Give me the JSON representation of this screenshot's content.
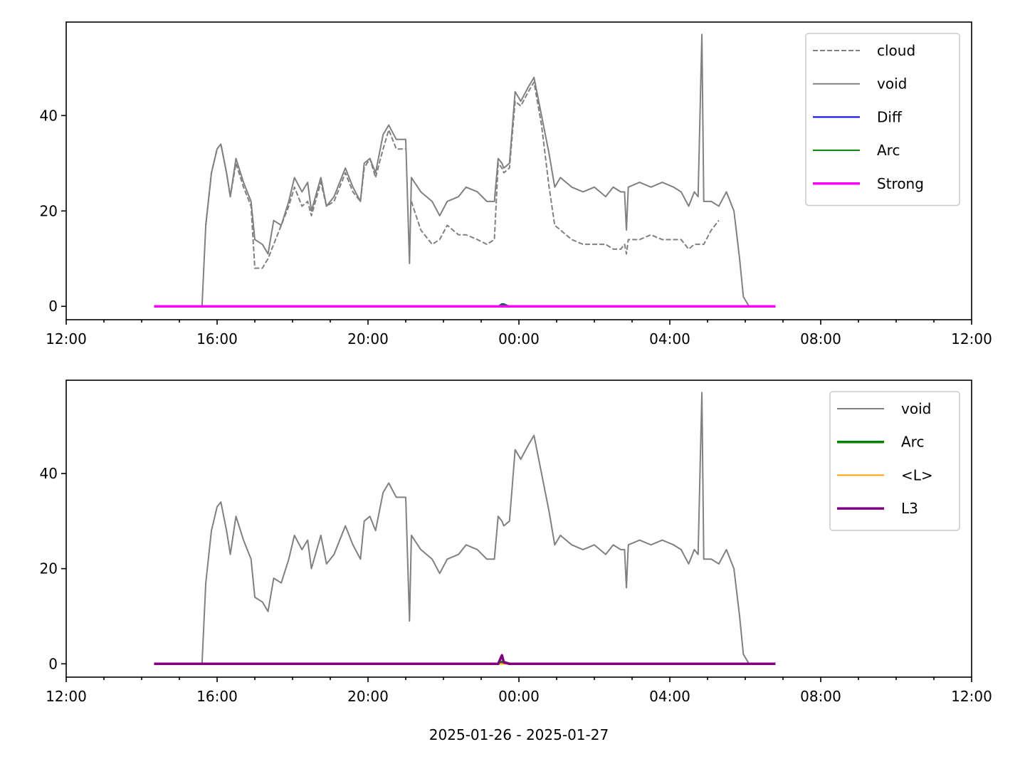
{
  "chart_data": [
    {
      "type": "line",
      "x": [
        14.33,
        15.6,
        15.7,
        15.85,
        16.0,
        16.1,
        16.25,
        16.35,
        16.5,
        16.7,
        16.9,
        17.0,
        17.2,
        17.35,
        17.5,
        17.7,
        17.9,
        18.05,
        18.25,
        18.4,
        18.5,
        18.75,
        18.9,
        19.1,
        19.4,
        19.6,
        19.8,
        19.9,
        20.05,
        20.2,
        20.4,
        20.55,
        20.75,
        21.0,
        21.1,
        21.15,
        21.4,
        21.7,
        21.9,
        22.1,
        22.4,
        22.6,
        22.9,
        23.15,
        23.35,
        23.45,
        23.55,
        23.6,
        23.75,
        23.9,
        24.05,
        24.25,
        24.4,
        24.6,
        24.8,
        24.95,
        25.1,
        25.4,
        25.7,
        26.0,
        26.3,
        26.5,
        26.7,
        26.8,
        26.85,
        26.9,
        27.2,
        27.5,
        27.8,
        28.1,
        28.3,
        28.5,
        28.65,
        28.75,
        28.85,
        28.9,
        29.1,
        29.3,
        29.5,
        29.7,
        29.85,
        29.95,
        30.1,
        30.8
      ],
      "series": [
        {
          "name": "cloud",
          "color": "#808080",
          "linestyle": "dashed",
          "linewidth": "thin",
          "values": [
            null,
            null,
            17,
            28,
            33,
            34,
            28,
            23,
            30,
            25,
            21,
            8,
            8,
            10,
            13,
            17,
            21,
            25,
            21,
            22,
            19,
            26,
            21,
            22,
            28,
            24,
            22,
            29,
            31,
            27,
            33,
            37,
            33,
            33,
            null,
            22,
            16,
            13,
            14,
            17,
            15,
            15,
            14,
            13,
            14,
            30,
            29,
            28,
            29,
            43,
            42,
            45,
            47,
            38,
            25,
            17,
            16,
            14,
            13,
            13,
            13,
            12,
            12,
            13,
            11,
            14,
            14,
            15,
            14,
            14,
            14,
            12,
            13,
            13,
            13,
            13,
            16,
            18,
            null,
            null,
            null,
            null,
            null,
            null
          ]
        },
        {
          "name": "void",
          "color": "#808080",
          "linestyle": "solid",
          "linewidth": "thin",
          "values": [
            0,
            0,
            17,
            28,
            33,
            34,
            28,
            23,
            31,
            26,
            22,
            14,
            13,
            11,
            18,
            17,
            22,
            27,
            24,
            26,
            20,
            27,
            21,
            23,
            29,
            25,
            22,
            30,
            31,
            28,
            36,
            38,
            35,
            35,
            9,
            27,
            24,
            22,
            19,
            22,
            23,
            25,
            24,
            22,
            22,
            31,
            30,
            29,
            30,
            45,
            43,
            46,
            48,
            40,
            32,
            25,
            27,
            25,
            24,
            25,
            23,
            25,
            24,
            24,
            16,
            25,
            26,
            25,
            26,
            25,
            24,
            21,
            24,
            23,
            57,
            22,
            22,
            21,
            24,
            20,
            10,
            2,
            0,
            0
          ]
        },
        {
          "name": "Diff",
          "color": "#0000ff",
          "linestyle": "solid",
          "linewidth": "thin",
          "values": [
            0,
            0,
            0,
            0,
            0,
            0,
            0,
            0,
            0,
            0,
            0,
            0,
            0,
            0,
            0,
            0,
            0,
            0,
            0,
            0,
            0,
            0,
            0,
            0,
            0,
            0,
            0,
            0,
            0,
            0,
            0,
            0,
            0,
            0,
            0,
            0,
            0,
            0,
            0,
            0,
            0,
            0,
            0,
            0,
            0,
            0,
            0.5,
            0.5,
            0,
            0,
            0,
            0,
            0,
            0,
            0,
            0,
            0,
            0,
            0,
            0,
            0,
            0,
            0,
            0,
            0,
            0,
            0,
            0,
            0,
            0,
            0,
            0,
            0,
            0,
            0,
            0,
            0,
            0,
            0,
            0,
            0,
            0,
            0,
            0
          ]
        },
        {
          "name": "Arc",
          "color": "#008000",
          "linestyle": "solid",
          "linewidth": "thin",
          "values": [
            0,
            0,
            0,
            0,
            0,
            0,
            0,
            0,
            0,
            0,
            0,
            0,
            0,
            0,
            0,
            0,
            0,
            0,
            0,
            0,
            0,
            0,
            0,
            0,
            0,
            0,
            0,
            0,
            0,
            0,
            0,
            0,
            0,
            0,
            0,
            0,
            0,
            0,
            0,
            0,
            0,
            0,
            0,
            0,
            0,
            0,
            0.4,
            0.4,
            0,
            0,
            0,
            0,
            0,
            0,
            0,
            0,
            0,
            0,
            0,
            0,
            0,
            0,
            0,
            0,
            0,
            0,
            0,
            0,
            0,
            0,
            0,
            0,
            0,
            0,
            0,
            0,
            0,
            0,
            0,
            0,
            0,
            0,
            0,
            0
          ]
        },
        {
          "name": "Strong",
          "color": "#ff00ff",
          "linestyle": "solid",
          "linewidth": "thick",
          "values": [
            0,
            0,
            0,
            0,
            0,
            0,
            0,
            0,
            0,
            0,
            0,
            0,
            0,
            0,
            0,
            0,
            0,
            0,
            0,
            0,
            0,
            0,
            0,
            0,
            0,
            0,
            0,
            0,
            0,
            0,
            0,
            0,
            0,
            0,
            0,
            0,
            0,
            0,
            0,
            0,
            0,
            0,
            0,
            0,
            0,
            0,
            0,
            0,
            0,
            0,
            0,
            0,
            0,
            0,
            0,
            0,
            0,
            0,
            0,
            0,
            0,
            0,
            0,
            0,
            0,
            0,
            0,
            0,
            0,
            0,
            0,
            0,
            0,
            0,
            0,
            0,
            0,
            0,
            0,
            0,
            0,
            0,
            0,
            0
          ]
        }
      ],
      "xlim": [
        12,
        36
      ],
      "xticks": [
        {
          "value": 12,
          "label": "12:00"
        },
        {
          "value": 16,
          "label": "16:00"
        },
        {
          "value": 20,
          "label": "20:00"
        },
        {
          "value": 24,
          "label": "00:00"
        },
        {
          "value": 28,
          "label": "04:00"
        },
        {
          "value": 32,
          "label": "08:00"
        },
        {
          "value": 36,
          "label": "12:00"
        }
      ],
      "ylim": [
        -2.8,
        59.6
      ],
      "yticks": [
        0,
        20,
        40
      ],
      "legend": "upper right"
    },
    {
      "type": "line",
      "xlabel": "2025-01-26 - 2025-01-27",
      "x": [
        14.33,
        15.6,
        15.7,
        15.85,
        16.0,
        16.1,
        16.25,
        16.35,
        16.5,
        16.7,
        16.9,
        17.0,
        17.2,
        17.35,
        17.5,
        17.7,
        17.9,
        18.05,
        18.25,
        18.4,
        18.5,
        18.75,
        18.9,
        19.1,
        19.4,
        19.6,
        19.8,
        19.9,
        20.05,
        20.2,
        20.4,
        20.55,
        20.75,
        21.0,
        21.1,
        21.15,
        21.4,
        21.7,
        21.9,
        22.1,
        22.4,
        22.6,
        22.9,
        23.15,
        23.35,
        23.45,
        23.55,
        23.6,
        23.75,
        23.9,
        24.05,
        24.25,
        24.4,
        24.6,
        24.8,
        24.95,
        25.1,
        25.4,
        25.7,
        26.0,
        26.3,
        26.5,
        26.7,
        26.8,
        26.85,
        26.9,
        27.2,
        27.5,
        27.8,
        28.1,
        28.3,
        28.5,
        28.65,
        28.75,
        28.85,
        28.9,
        29.1,
        29.3,
        29.5,
        29.7,
        29.85,
        29.95,
        30.1,
        30.8
      ],
      "series": [
        {
          "name": "void",
          "color": "#808080",
          "linestyle": "solid",
          "linewidth": "thin",
          "values": [
            0,
            0,
            17,
            28,
            33,
            34,
            28,
            23,
            31,
            26,
            22,
            14,
            13,
            11,
            18,
            17,
            22,
            27,
            24,
            26,
            20,
            27,
            21,
            23,
            29,
            25,
            22,
            30,
            31,
            28,
            36,
            38,
            35,
            35,
            9,
            27,
            24,
            22,
            19,
            22,
            23,
            25,
            24,
            22,
            22,
            31,
            30,
            29,
            30,
            45,
            43,
            46,
            48,
            40,
            32,
            25,
            27,
            25,
            24,
            25,
            23,
            25,
            24,
            24,
            16,
            25,
            26,
            25,
            26,
            25,
            24,
            21,
            24,
            23,
            57,
            22,
            22,
            21,
            24,
            20,
            10,
            2,
            0,
            0
          ]
        },
        {
          "name": "Arc",
          "color": "#008000",
          "linestyle": "solid",
          "linewidth": "thick",
          "values": [
            0,
            0,
            0,
            0,
            0,
            0,
            0,
            0,
            0,
            0,
            0,
            0,
            0,
            0,
            0,
            0,
            0,
            0,
            0,
            0,
            0,
            0,
            0,
            0,
            0,
            0,
            0,
            0,
            0,
            0,
            0,
            0,
            0,
            0,
            0,
            0,
            0,
            0,
            0,
            0,
            0,
            0,
            0,
            0,
            0,
            0,
            0.4,
            0.4,
            0,
            0,
            0,
            0,
            0,
            0,
            0,
            0,
            0,
            0,
            0,
            0,
            0,
            0,
            0,
            0,
            0,
            0,
            0,
            0,
            0,
            0,
            0,
            0,
            0,
            0,
            0,
            0,
            0,
            0,
            0,
            0,
            0,
            0,
            0,
            0
          ]
        },
        {
          "name": "<L>",
          "color": "#ffa500",
          "linestyle": "solid",
          "linewidth": "thin",
          "values": [
            0,
            0,
            0,
            0,
            0,
            0,
            0,
            0,
            0,
            0,
            0,
            0,
            0,
            0,
            0,
            0,
            0,
            0,
            0,
            0,
            0,
            0,
            0,
            0,
            0,
            0,
            0,
            0,
            0,
            0,
            0,
            0,
            0,
            0,
            0,
            0,
            0,
            0,
            0,
            0,
            0,
            0,
            0,
            0,
            0,
            0,
            0,
            0,
            0,
            0,
            0,
            0,
            0,
            0,
            0,
            0,
            0,
            0,
            0,
            0,
            0,
            0,
            0,
            0,
            0,
            0,
            0,
            0,
            0,
            0,
            0,
            0,
            0,
            0,
            0,
            0,
            0,
            0,
            0,
            0,
            0,
            0,
            0,
            0
          ]
        },
        {
          "name": "L3",
          "color": "#800080",
          "linestyle": "solid",
          "linewidth": "thick",
          "values": [
            0,
            0,
            0,
            0,
            0,
            0,
            0,
            0,
            0,
            0,
            0,
            0,
            0,
            0,
            0,
            0,
            0,
            0,
            0,
            0,
            0,
            0,
            0,
            0,
            0,
            0,
            0,
            0,
            0,
            0,
            0,
            0,
            0,
            0,
            0,
            0,
            0,
            0,
            0,
            0,
            0,
            0,
            0,
            0,
            0,
            0,
            1.8,
            0.3,
            0,
            0,
            0,
            0,
            0,
            0,
            0,
            0,
            0,
            0,
            0,
            0,
            0,
            0,
            0,
            0,
            0,
            0,
            0,
            0,
            0,
            0,
            0,
            0,
            0,
            0,
            0,
            0,
            0,
            0,
            0,
            0,
            0,
            0,
            0,
            0
          ]
        }
      ],
      "xlim": [
        12,
        36
      ],
      "xticks": [
        {
          "value": 12,
          "label": "12:00"
        },
        {
          "value": 16,
          "label": "16:00"
        },
        {
          "value": 20,
          "label": "20:00"
        },
        {
          "value": 24,
          "label": "00:00"
        },
        {
          "value": 28,
          "label": "04:00"
        },
        {
          "value": 32,
          "label": "08:00"
        },
        {
          "value": 36,
          "label": "12:00"
        }
      ],
      "ylim": [
        -2.8,
        59.6
      ],
      "yticks": [
        0,
        20,
        40
      ],
      "legend": "upper right"
    }
  ]
}
